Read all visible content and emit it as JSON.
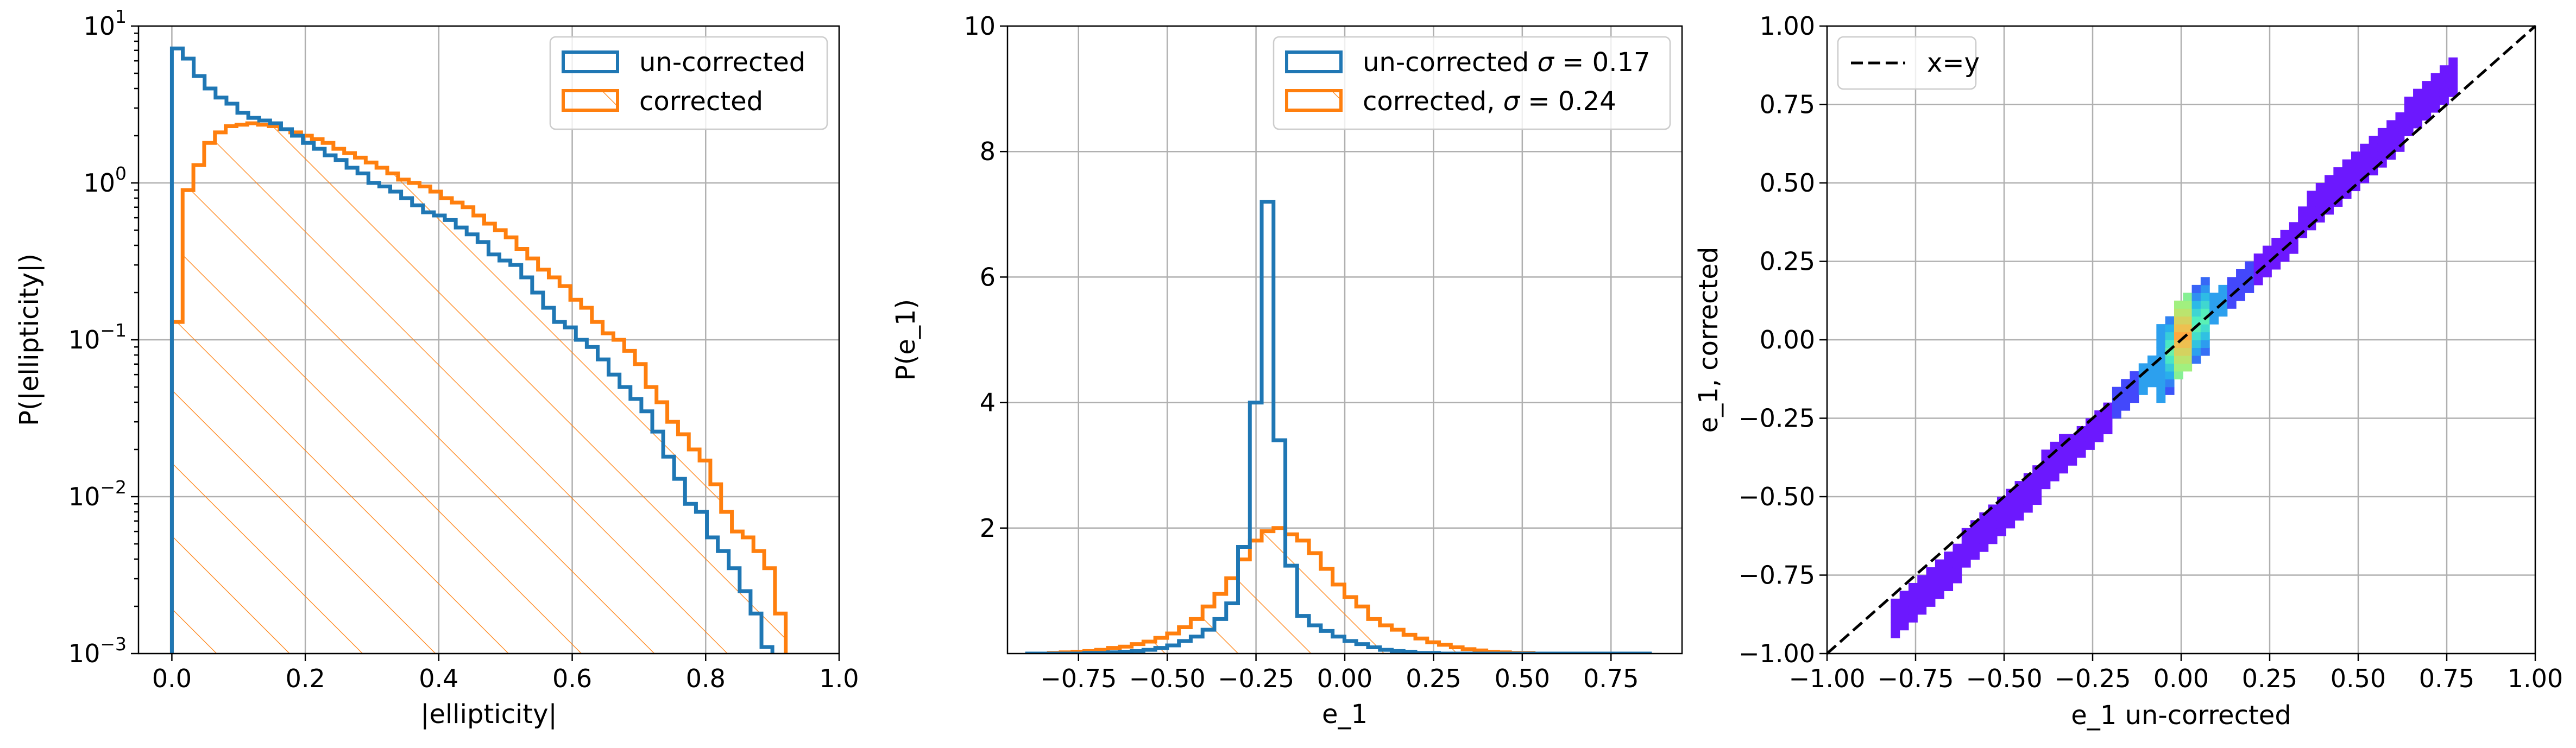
{
  "colors": {
    "uncorrected": "#1f77b4",
    "corrected": "#ff7f0e",
    "reference_line": "#000000"
  },
  "chart_data": [
    {
      "type": "histogram",
      "xlabel": "|ellipticity|",
      "ylabel": "P(|ellipticity|)",
      "xlim": [
        -0.05,
        1.0
      ],
      "ylim": [
        0.001,
        10
      ],
      "yscale": "log",
      "grid": true,
      "legend_position": "upper right",
      "x_ticks": [
        "0.0",
        "0.2",
        "0.4",
        "0.6",
        "0.8",
        "1.0"
      ],
      "y_ticks": [
        {
          "base": "10",
          "exp": "−3"
        },
        {
          "base": "10",
          "exp": "−2"
        },
        {
          "base": "10",
          "exp": "−1"
        },
        {
          "base": "10",
          "exp": "0"
        },
        {
          "base": "10",
          "exp": "1"
        }
      ],
      "bin_edges_uncorrected": [
        0.0,
        0.9
      ],
      "bin_edges_corrected": [
        0.0,
        0.92
      ],
      "series": [
        {
          "name": "un-corrected",
          "style": "step",
          "values": [
            7.2,
            6.2,
            4.8,
            4.0,
            3.5,
            3.2,
            2.8,
            2.6,
            2.5,
            2.4,
            2.2,
            2.0,
            1.8,
            1.65,
            1.5,
            1.4,
            1.25,
            1.15,
            1.0,
            0.95,
            0.88,
            0.8,
            0.72,
            0.65,
            0.62,
            0.58,
            0.52,
            0.47,
            0.42,
            0.35,
            0.32,
            0.3,
            0.25,
            0.2,
            0.16,
            0.13,
            0.12,
            0.1,
            0.09,
            0.075,
            0.06,
            0.05,
            0.042,
            0.035,
            0.026,
            0.018,
            0.013,
            0.009,
            0.008,
            0.0055,
            0.0045,
            0.0035,
            0.0025,
            0.0018,
            0.0011
          ]
        },
        {
          "name": "corrected",
          "style": "step-hatched",
          "values": [
            0.13,
            0.9,
            1.3,
            1.8,
            2.1,
            2.3,
            2.35,
            2.4,
            2.35,
            2.3,
            2.2,
            2.1,
            2.0,
            1.9,
            1.8,
            1.65,
            1.55,
            1.45,
            1.35,
            1.25,
            1.15,
            1.05,
            1.0,
            0.95,
            0.88,
            0.8,
            0.75,
            0.7,
            0.62,
            0.55,
            0.5,
            0.45,
            0.38,
            0.33,
            0.28,
            0.25,
            0.22,
            0.18,
            0.16,
            0.13,
            0.11,
            0.1,
            0.085,
            0.07,
            0.05,
            0.04,
            0.03,
            0.025,
            0.02,
            0.017,
            0.012,
            0.008,
            0.006,
            0.0055,
            0.0045,
            0.0035,
            0.0018
          ]
        }
      ]
    },
    {
      "type": "histogram",
      "xlabel": "e_1",
      "ylabel": "P(e_1)",
      "xlim": [
        -0.95,
        0.95
      ],
      "ylim": [
        0,
        10
      ],
      "grid": true,
      "legend_position": "upper right",
      "x_ticks": [
        "−0.75",
        "−0.50",
        "−0.25",
        "0.00",
        "0.25",
        "0.50",
        "0.75"
      ],
      "x_tick_values": [
        -0.75,
        -0.5,
        -0.25,
        0.0,
        0.25,
        0.5,
        0.75
      ],
      "y_ticks": [
        "2",
        "4",
        "6",
        "8",
        "10"
      ],
      "y_tick_values": [
        2,
        4,
        6,
        8,
        10
      ],
      "series": [
        {
          "name": "un-corrected σ = 0.17",
          "legend_prefix": "un-corrected ",
          "legend_sigma": "σ",
          "legend_suffix": " = 0.17",
          "style": "step",
          "x_start": -0.9,
          "bin_width": 0.0333,
          "values": [
            0.0,
            0.0,
            0.0,
            0.0,
            0.0,
            0.01,
            0.01,
            0.02,
            0.03,
            0.04,
            0.06,
            0.09,
            0.13,
            0.2,
            0.27,
            0.38,
            0.55,
            0.8,
            1.7,
            4.0,
            7.2,
            3.4,
            1.4,
            0.6,
            0.45,
            0.36,
            0.27,
            0.2,
            0.15,
            0.1,
            0.06,
            0.04,
            0.03,
            0.01,
            0.01,
            0.0,
            0.0,
            0.0,
            0.0,
            0.0,
            0.0,
            0.0,
            0.0,
            0.0,
            0.0,
            0.0,
            0.0,
            0.0,
            0.0,
            0.0,
            0.0,
            0.0,
            0.0
          ]
        },
        {
          "name": "corrected, σ = 0.24",
          "legend_prefix": "corrected, ",
          "legend_sigma": "σ",
          "legend_suffix": " = 0.24",
          "style": "step-hatched",
          "x_start": -0.9,
          "bin_width": 0.0333,
          "values": [
            0.0,
            0.0,
            0.01,
            0.02,
            0.03,
            0.04,
            0.06,
            0.09,
            0.11,
            0.15,
            0.19,
            0.25,
            0.32,
            0.42,
            0.55,
            0.75,
            0.95,
            1.2,
            1.5,
            1.8,
            1.95,
            2.0,
            1.9,
            1.8,
            1.6,
            1.35,
            1.1,
            0.9,
            0.75,
            0.55,
            0.45,
            0.38,
            0.3,
            0.24,
            0.18,
            0.14,
            0.1,
            0.07,
            0.05,
            0.03,
            0.02,
            0.01,
            0.01,
            0.0,
            0.0,
            0.0,
            0.0,
            0.0,
            0.0,
            0.0,
            0.0,
            0.0,
            0.0
          ]
        }
      ]
    },
    {
      "type": "heatmap",
      "xlabel": "e_1 un-corrected",
      "ylabel": "e_1, corrected",
      "xlim": [
        -1.0,
        1.0
      ],
      "ylim": [
        -1.0,
        1.0
      ],
      "grid": true,
      "legend_position": "upper left",
      "x_ticks": [
        "−1.00",
        "−0.75",
        "−0.50",
        "−0.25",
        "0.00",
        "0.25",
        "0.50",
        "0.75",
        "1.00"
      ],
      "y_ticks": [
        "−1.00",
        "−0.75",
        "−0.50",
        "−0.25",
        "0.00",
        "0.25",
        "0.50",
        "0.75",
        "1.00"
      ],
      "tick_values": [
        -1.0,
        -0.75,
        -0.5,
        -0.25,
        0.0,
        0.25,
        0.5,
        0.75,
        1.0
      ],
      "colormap": "rainbow",
      "reference_line": {
        "name": "x=y",
        "style": "dashed"
      },
      "density_band": {
        "x_range": [
          -0.82,
          0.78
        ],
        "slope_outer": 1.1
      }
    }
  ]
}
